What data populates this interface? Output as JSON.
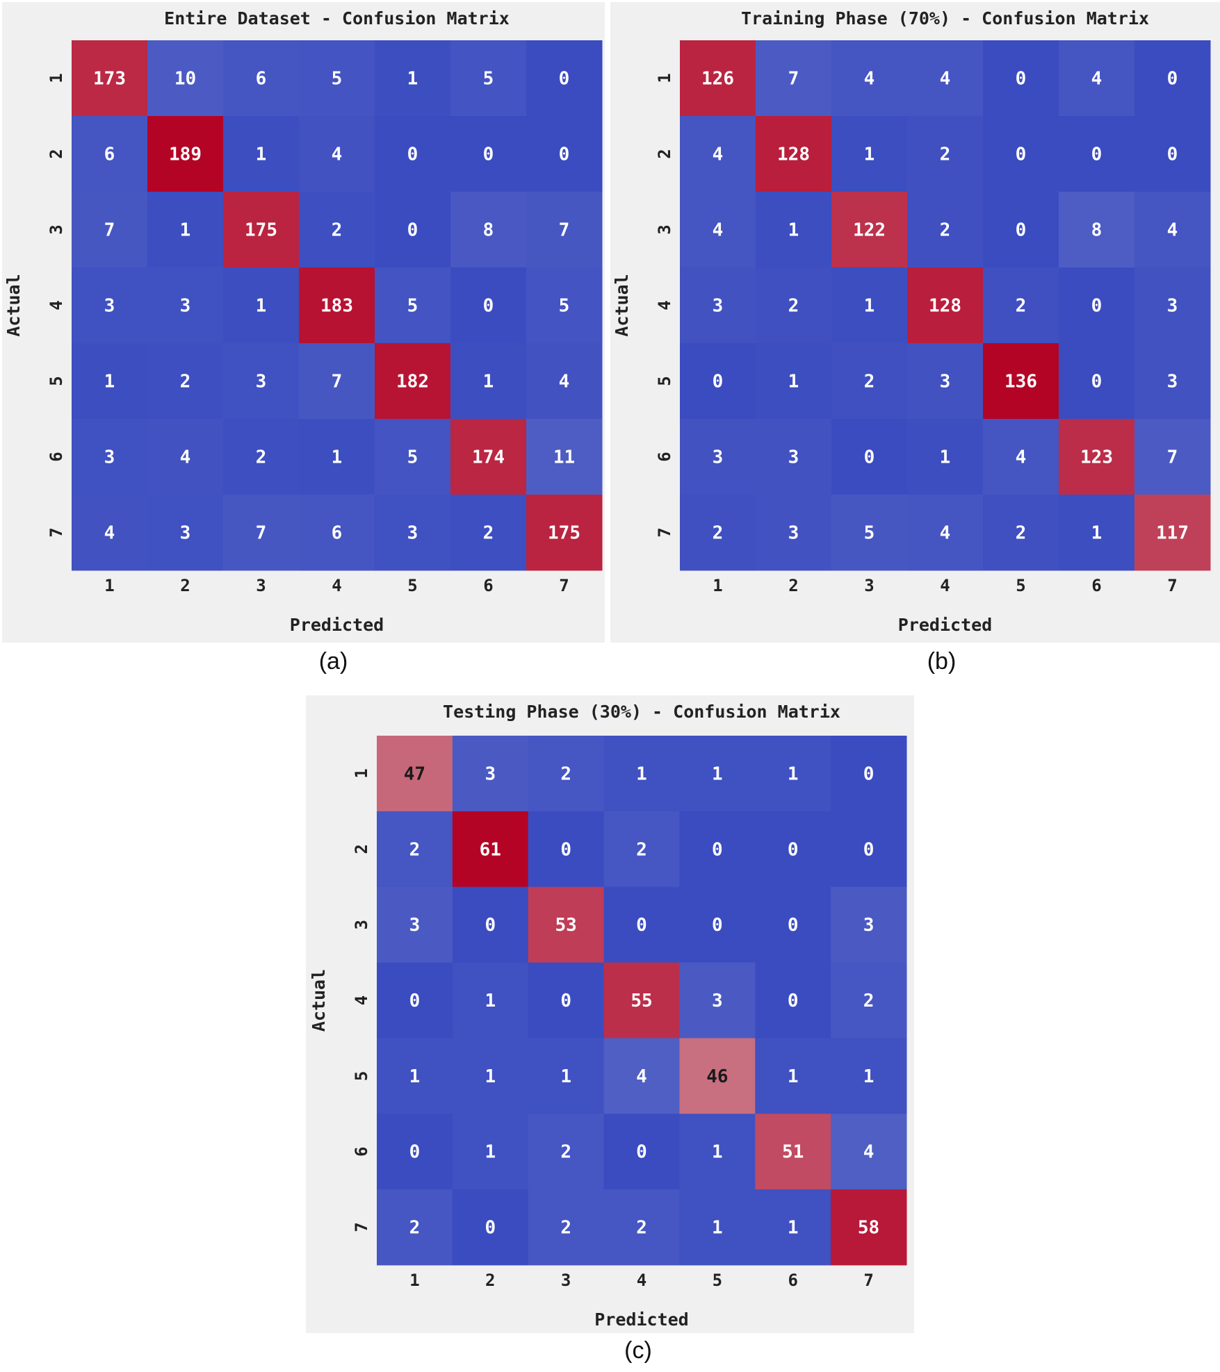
{
  "chart_data": [
    {
      "type": "heatmap",
      "title": "Entire Dataset - Confusion Matrix",
      "xlabel": "Predicted",
      "ylabel": "Actual",
      "panel_label": "(a)",
      "x_ticks": [
        "1",
        "2",
        "3",
        "4",
        "5",
        "6",
        "7"
      ],
      "y_ticks": [
        "1",
        "2",
        "3",
        "4",
        "5",
        "6",
        "7"
      ],
      "matrix": [
        [
          173,
          10,
          6,
          5,
          1,
          5,
          0
        ],
        [
          6,
          189,
          1,
          4,
          0,
          0,
          0
        ],
        [
          7,
          1,
          175,
          2,
          0,
          8,
          7
        ],
        [
          3,
          3,
          1,
          183,
          5,
          0,
          5
        ],
        [
          1,
          2,
          3,
          7,
          182,
          1,
          4
        ],
        [
          3,
          4,
          2,
          1,
          5,
          174,
          11
        ],
        [
          4,
          3,
          7,
          6,
          3,
          2,
          175
        ]
      ],
      "value_range": [
        0,
        189
      ],
      "colormap": "coolwarm"
    },
    {
      "type": "heatmap",
      "title": "Training Phase (70%) - Confusion Matrix",
      "xlabel": "Predicted",
      "ylabel": "Actual",
      "panel_label": "(b)",
      "x_ticks": [
        "1",
        "2",
        "3",
        "4",
        "5",
        "6",
        "7"
      ],
      "y_ticks": [
        "1",
        "2",
        "3",
        "4",
        "5",
        "6",
        "7"
      ],
      "matrix": [
        [
          126,
          7,
          4,
          4,
          0,
          4,
          0
        ],
        [
          4,
          128,
          1,
          2,
          0,
          0,
          0
        ],
        [
          4,
          1,
          122,
          2,
          0,
          8,
          4
        ],
        [
          3,
          2,
          1,
          128,
          2,
          0,
          3
        ],
        [
          0,
          1,
          2,
          3,
          136,
          0,
          3
        ],
        [
          3,
          3,
          0,
          1,
          4,
          123,
          7
        ],
        [
          2,
          3,
          5,
          4,
          2,
          1,
          117
        ]
      ],
      "value_range": [
        0,
        136
      ],
      "colormap": "coolwarm"
    },
    {
      "type": "heatmap",
      "title": "Testing Phase (30%) - Confusion Matrix",
      "xlabel": "Predicted",
      "ylabel": "Actual",
      "panel_label": "(c)",
      "x_ticks": [
        "1",
        "2",
        "3",
        "4",
        "5",
        "6",
        "7"
      ],
      "y_ticks": [
        "1",
        "2",
        "3",
        "4",
        "5",
        "6",
        "7"
      ],
      "matrix": [
        [
          47,
          3,
          2,
          1,
          1,
          1,
          0
        ],
        [
          2,
          61,
          0,
          2,
          0,
          0,
          0
        ],
        [
          3,
          0,
          53,
          0,
          0,
          0,
          3
        ],
        [
          0,
          1,
          0,
          55,
          3,
          0,
          2
        ],
        [
          1,
          1,
          1,
          4,
          46,
          1,
          1
        ],
        [
          0,
          1,
          2,
          0,
          1,
          51,
          4
        ],
        [
          2,
          0,
          2,
          2,
          1,
          1,
          58
        ]
      ],
      "value_range": [
        0,
        61
      ],
      "colormap": "coolwarm"
    }
  ],
  "colors": {
    "panel_background": "#f0f0f0",
    "text": "#222222",
    "cold": "#3b4cc0",
    "neutral": "#dddddd",
    "warm": "#b40426"
  }
}
